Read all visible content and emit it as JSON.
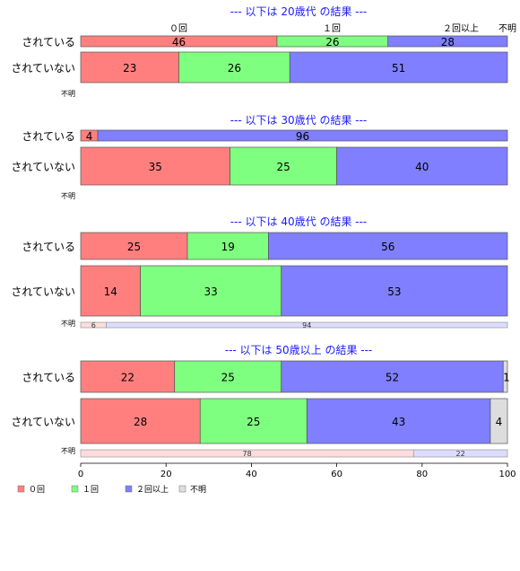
{
  "chart_data": {
    "type": "bar",
    "orientation": "horizontal-stacked-percent",
    "categories": [
      "０回",
      "１回",
      "２回以上",
      "不明"
    ],
    "colors": {
      "０回": "#ff7f7f",
      "１回": "#7fff7f",
      "２回以上": "#7f7fff",
      "不明": "#dddddd"
    },
    "light_colors": {
      "０回": "#ffdcdc",
      "１回": "#dcffdc",
      "２回以上": "#dcdcff",
      "不明": "#eeeeee"
    },
    "xlim": [
      0,
      100
    ],
    "xticks": [
      "0",
      "20",
      "40",
      "60",
      "80",
      "100"
    ],
    "legend": [
      "０回",
      "１回",
      "２回以上",
      "不明"
    ],
    "legend_position": "bottom-left",
    "panels": [
      {
        "title": "--- 以下は 20歳代 の結果 ---",
        "rows": [
          {
            "label": "されている",
            "values": [
              46,
              26,
              28,
              0
            ]
          },
          {
            "label": "されていない",
            "values": [
              23,
              26,
              51,
              0
            ]
          },
          {
            "label": "不明",
            "values": [],
            "small": true
          }
        ]
      },
      {
        "title": "--- 以下は 30歳代 の結果 ---",
        "rows": [
          {
            "label": "されている",
            "values": [
              4,
              0,
              96,
              0
            ]
          },
          {
            "label": "されていない",
            "values": [
              35,
              25,
              40,
              0
            ]
          },
          {
            "label": "不明",
            "values": [],
            "small": true
          }
        ]
      },
      {
        "title": "--- 以下は 40歳代 の結果 ---",
        "rows": [
          {
            "label": "されている",
            "values": [
              25,
              19,
              56,
              0
            ]
          },
          {
            "label": "されていない",
            "values": [
              14,
              33,
              53,
              0
            ]
          },
          {
            "label": "不明",
            "values": [
              6,
              0,
              94,
              0
            ],
            "small": true
          }
        ]
      },
      {
        "title": "--- 以下は 50歳以上 の結果 ---",
        "rows": [
          {
            "label": "されている",
            "values": [
              22,
              25,
              52,
              1
            ]
          },
          {
            "label": "されていない",
            "values": [
              28,
              25,
              43,
              4
            ]
          },
          {
            "label": "不明",
            "values": [
              78,
              0,
              22,
              0
            ],
            "small": true
          }
        ]
      }
    ]
  }
}
